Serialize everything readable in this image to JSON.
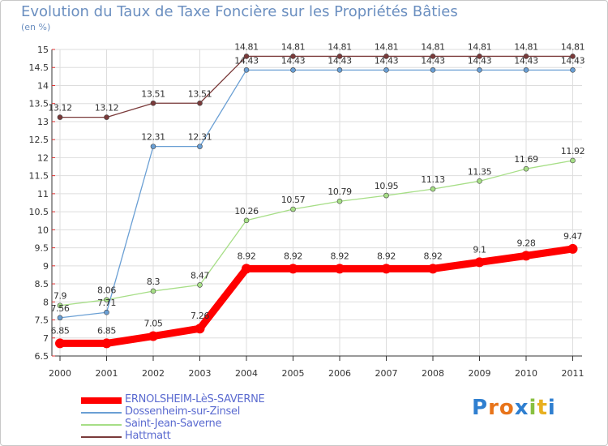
{
  "chart_data": {
    "type": "line",
    "title": "Evolution du Taux de Taxe Foncière sur les Propriétés Bâties",
    "subtitle": "(en %)",
    "categories": [
      "2000",
      "2001",
      "2002",
      "2003",
      "2004",
      "2005",
      "2006",
      "2007",
      "2008",
      "2009",
      "2010",
      "2011"
    ],
    "ylim": [
      6.5,
      15
    ],
    "yticks": [
      "6.5",
      "7",
      "7.5",
      "8",
      "8.5",
      "9",
      "9.5",
      "10",
      "10.5",
      "11",
      "11.5",
      "12",
      "12.5",
      "13",
      "13.5",
      "14",
      "14.5",
      "15"
    ],
    "grid": true,
    "legend_position": "bottom-left",
    "series": [
      {
        "name": "ERNOLSHEIM-LèS-SAVERNE",
        "color": "#ff0000",
        "values": [
          6.85,
          6.85,
          7.05,
          7.26,
          8.92,
          8.92,
          8.92,
          8.92,
          8.92,
          9.1,
          9.28,
          9.47
        ],
        "labels": [
          "6.85",
          "6.85",
          "7.05",
          "7.26",
          "8.92",
          "8.92",
          "8.92",
          "8.92",
          "8.92",
          "9.1",
          "9.28",
          "9.47"
        ]
      },
      {
        "name": "Dossenheim-sur-Zinsel",
        "color": "#6a9fd4",
        "values": [
          7.56,
          7.71,
          12.31,
          12.31,
          14.43,
          14.43,
          14.43,
          14.43,
          14.43,
          14.43,
          14.43,
          14.43
        ],
        "labels": [
          "7.56",
          "7.71",
          "12.31",
          "12.31",
          "14.43",
          "14.43",
          "14.43",
          "14.43",
          "14.43",
          "14.43",
          "14.43",
          "14.43"
        ]
      },
      {
        "name": "Saint-Jean-Saverne",
        "color": "#a6de86",
        "values": [
          7.9,
          8.06,
          8.3,
          8.47,
          10.26,
          10.57,
          10.79,
          10.95,
          11.13,
          11.35,
          11.69,
          11.92
        ],
        "labels": [
          "7.9",
          "8.06",
          "8.3",
          "8.47",
          "10.26",
          "10.57",
          "10.79",
          "10.95",
          "11.13",
          "11.35",
          "11.69",
          "11.92"
        ]
      },
      {
        "name": "Hattmatt",
        "color": "#7a3a3a",
        "values": [
          13.12,
          13.12,
          13.51,
          13.51,
          14.81,
          14.81,
          14.81,
          14.81,
          14.81,
          14.81,
          14.81,
          14.81
        ],
        "labels": [
          "13.12",
          "13.12",
          "13.51",
          "13.51",
          "14.81",
          "14.81",
          "14.81",
          "14.81",
          "14.81",
          "14.81",
          "14.81",
          "14.81"
        ]
      }
    ]
  },
  "logo": {
    "letters": [
      "P",
      "r",
      "o",
      "x",
      "i",
      "t",
      "i"
    ],
    "colors": [
      "#2f7fd0",
      "#e8741a",
      "#e8741a",
      "#2f7fd0",
      "#88c040",
      "#e8b020",
      "#2f7fd0"
    ]
  }
}
